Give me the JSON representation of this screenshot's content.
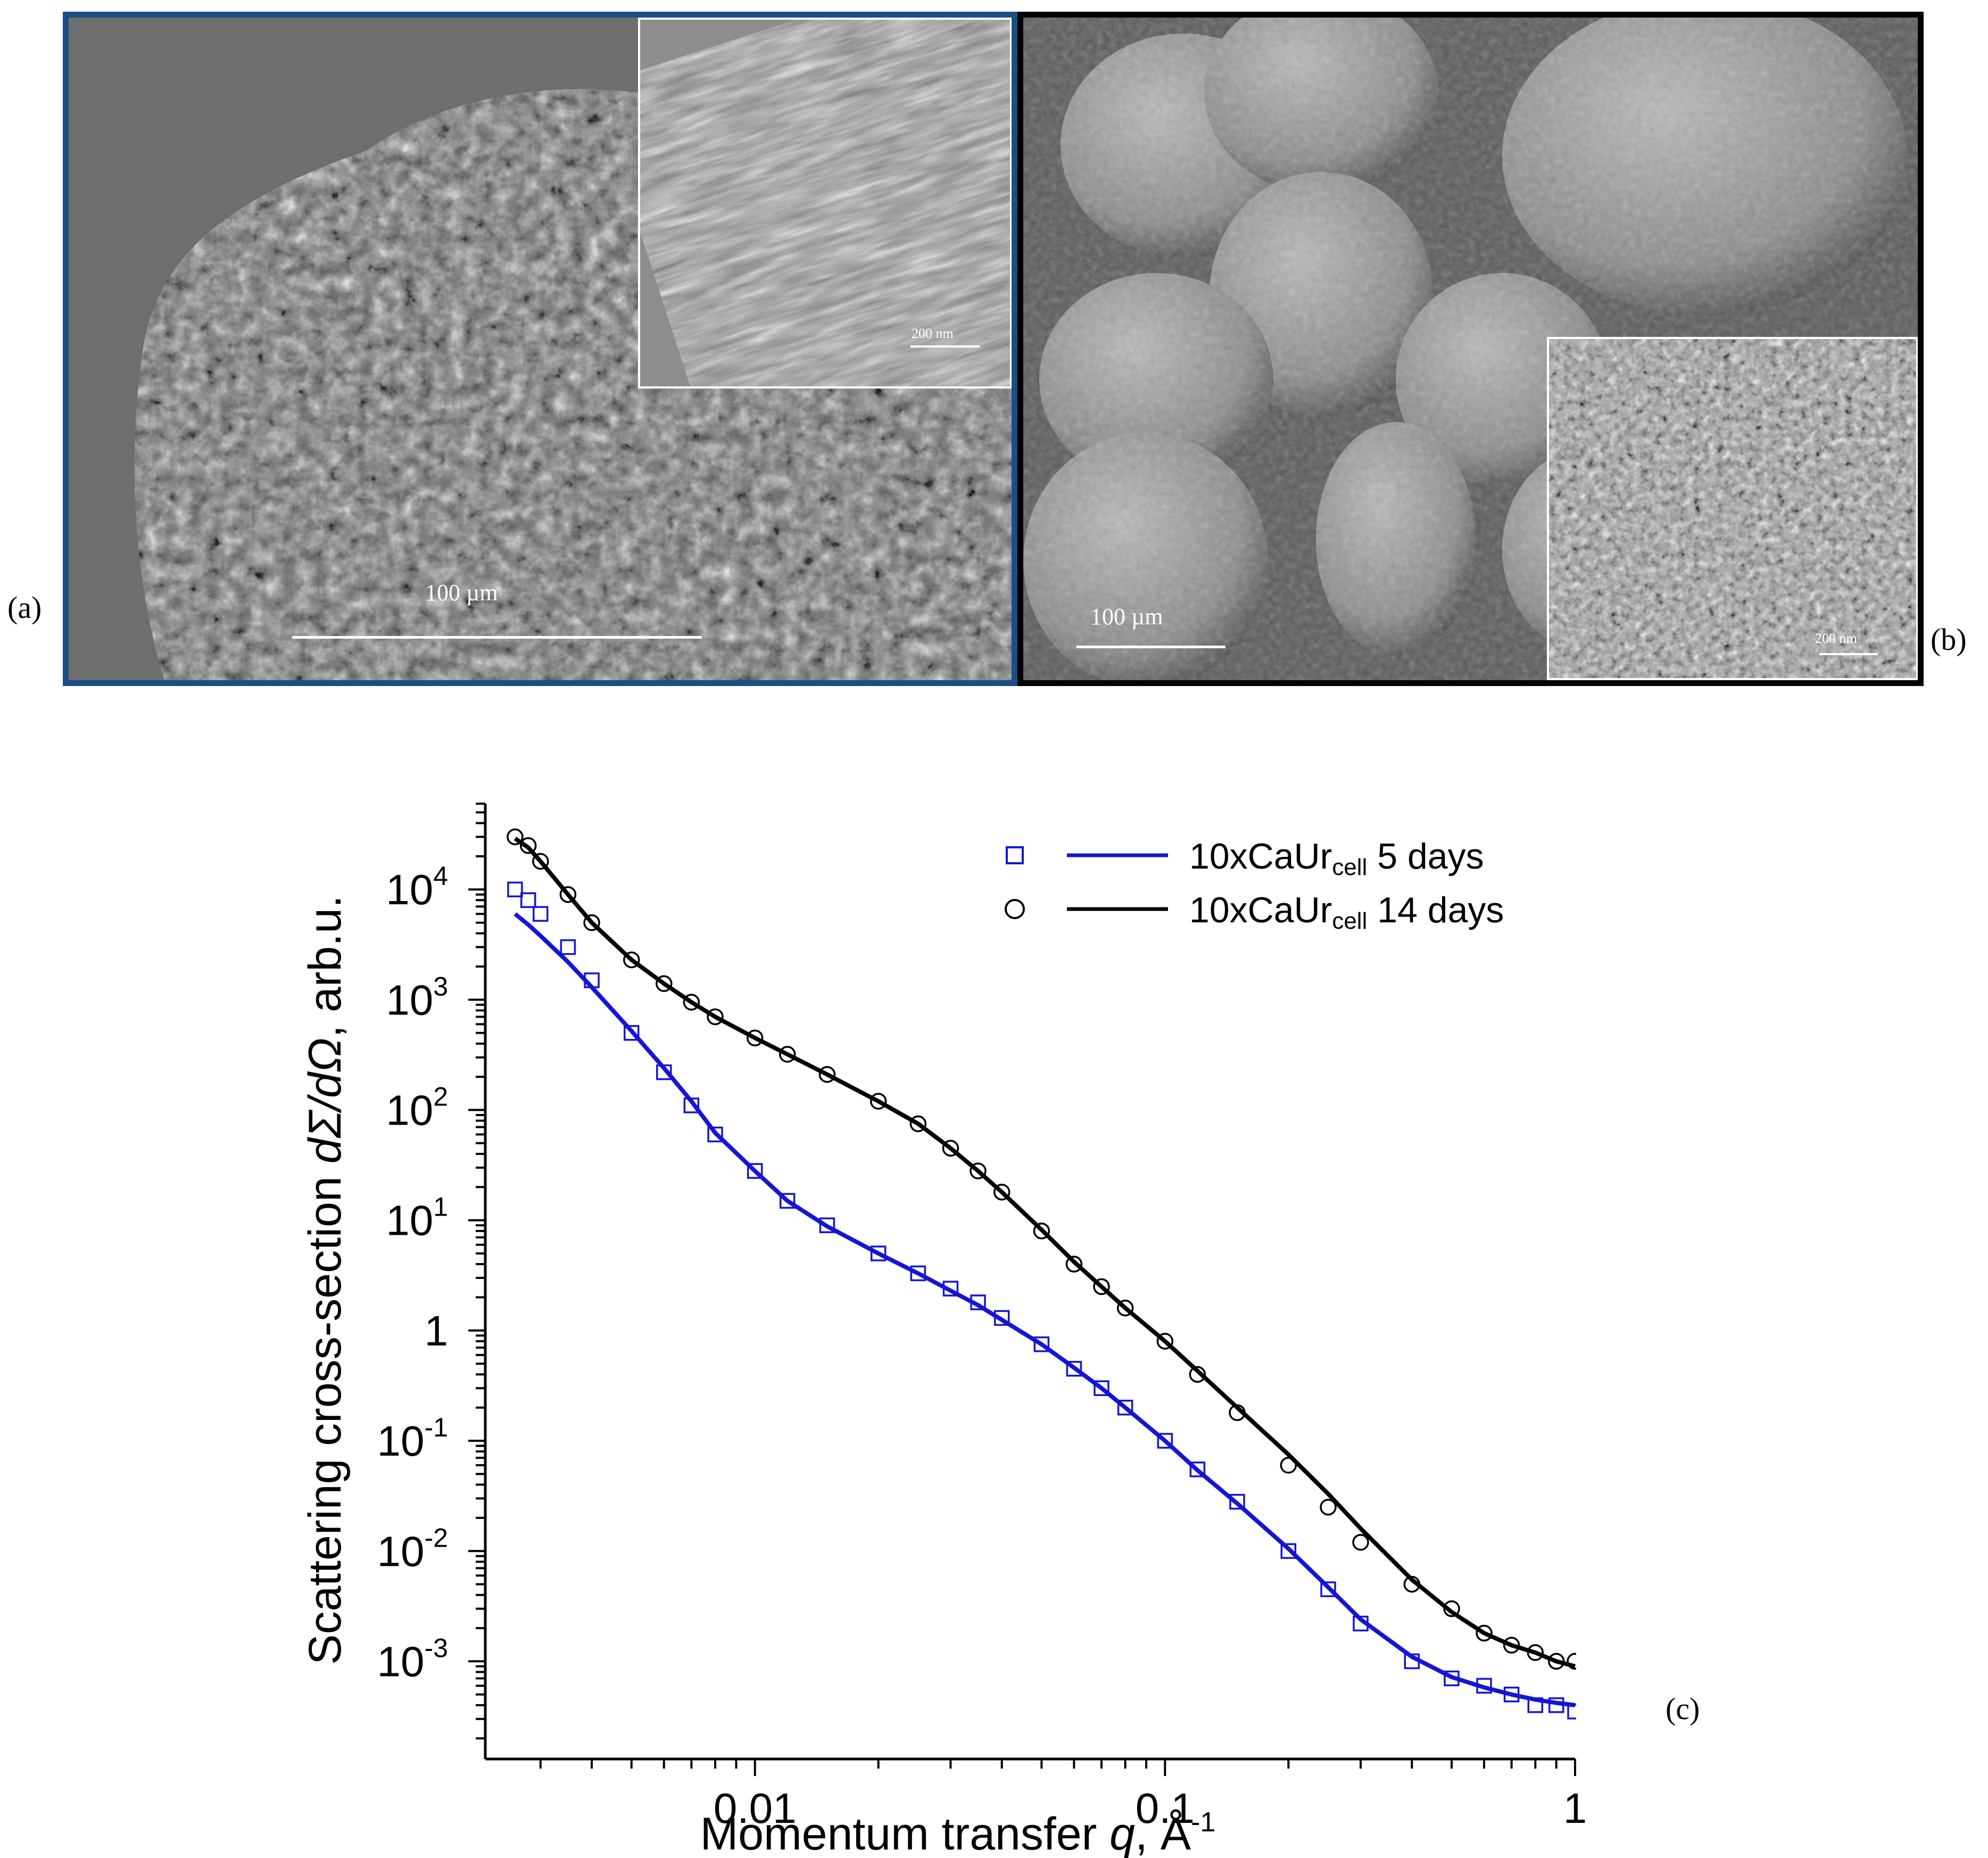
{
  "panels": {
    "a": {
      "letter": "(a)",
      "scale_main": "100 µm",
      "scale_inset": "200 nm"
    },
    "b": {
      "letter": "(b)",
      "scale_main": "100 µm",
      "scale_inset": "200 nm"
    },
    "c": {
      "letter": "(c)"
    }
  },
  "colors": {
    "panel_a_border": "#1c4e85",
    "panel_b_border": "#000000",
    "series_5days": "#1515d6",
    "series_14days": "#000000"
  },
  "chart_data": {
    "type": "scatter",
    "xlabel_text": "Momentum transfer ",
    "xlabel_symbol": "q",
    "xlabel_unit": ", Å",
    "xlabel_unit_exp": "-1",
    "ylabel_text": "Scattering cross-section ",
    "ylabel_symbol": "dΣ/dΩ",
    "ylabel_unit": ", arb.u.",
    "x_scale": "log",
    "y_scale": "log",
    "xlim": [
      0.0022,
      1.0
    ],
    "ylim": [
      0.00013,
      60000
    ],
    "x_ticks": [
      {
        "value": 0.01,
        "label": "0.01"
      },
      {
        "value": 0.1,
        "label": "0.1"
      },
      {
        "value": 1,
        "label": "1"
      }
    ],
    "y_ticks": [
      {
        "value": 10000,
        "base": "10",
        "exp": "4"
      },
      {
        "value": 1000,
        "base": "10",
        "exp": "3"
      },
      {
        "value": 100,
        "base": "10",
        "exp": "2"
      },
      {
        "value": 10,
        "base": "10",
        "exp": "1"
      },
      {
        "value": 1,
        "base": "1",
        "exp": ""
      },
      {
        "value": 0.1,
        "base": "10",
        "exp": "-1"
      },
      {
        "value": 0.01,
        "base": "10",
        "exp": "-2"
      },
      {
        "value": 0.001,
        "base": "10",
        "exp": "-3"
      }
    ],
    "legend_position": "top-right",
    "series": [
      {
        "name": "10xCaUr",
        "name_sub": "cell",
        "name_suffix": " 5 days",
        "marker": "square",
        "x": [
          0.0026,
          0.0028,
          0.003,
          0.0035,
          0.004,
          0.005,
          0.006,
          0.007,
          0.008,
          0.01,
          0.012,
          0.015,
          0.02,
          0.025,
          0.03,
          0.035,
          0.04,
          0.05,
          0.06,
          0.07,
          0.08,
          0.1,
          0.12,
          0.15,
          0.2,
          0.25,
          0.3,
          0.4,
          0.5,
          0.6,
          0.7,
          0.8,
          0.9,
          1.0
        ],
        "y": [
          10000,
          8000,
          6000,
          3000,
          1500,
          500,
          220,
          110,
          60,
          28,
          15,
          9,
          5,
          3.3,
          2.4,
          1.8,
          1.3,
          0.75,
          0.45,
          0.3,
          0.2,
          0.1,
          0.055,
          0.028,
          0.01,
          0.0045,
          0.0022,
          0.001,
          0.0007,
          0.0006,
          0.0005,
          0.0004,
          0.0004,
          0.00035
        ],
        "fit_y": [
          6000,
          4800,
          3800,
          2200,
          1300,
          520,
          240,
          120,
          62,
          28,
          15,
          8.8,
          5,
          3.3,
          2.3,
          1.7,
          1.25,
          0.75,
          0.46,
          0.3,
          0.2,
          0.1,
          0.054,
          0.027,
          0.0105,
          0.0047,
          0.0024,
          0.0011,
          0.00072,
          0.00058,
          0.0005,
          0.00045,
          0.00042,
          0.0004
        ]
      },
      {
        "name": "10xCaUr",
        "name_sub": "cell",
        "name_suffix": " 14 days",
        "marker": "circle",
        "x": [
          0.0026,
          0.0028,
          0.003,
          0.0035,
          0.004,
          0.005,
          0.006,
          0.007,
          0.008,
          0.01,
          0.012,
          0.015,
          0.02,
          0.025,
          0.03,
          0.035,
          0.04,
          0.05,
          0.06,
          0.07,
          0.08,
          0.1,
          0.12,
          0.15,
          0.2,
          0.25,
          0.3,
          0.4,
          0.5,
          0.6,
          0.7,
          0.8,
          0.9,
          1.0
        ],
        "y": [
          30000,
          25000,
          18000,
          9000,
          5000,
          2300,
          1400,
          950,
          700,
          450,
          320,
          210,
          120,
          75,
          45,
          28,
          18,
          8,
          4,
          2.5,
          1.6,
          0.8,
          0.4,
          0.18,
          0.06,
          0.025,
          0.012,
          0.005,
          0.003,
          0.0018,
          0.0014,
          0.0012,
          0.001,
          0.001
        ],
        "fit_y": [
          29000,
          24000,
          18000,
          9000,
          5000,
          2300,
          1400,
          950,
          700,
          450,
          320,
          210,
          120,
          75,
          45,
          28,
          18,
          8.2,
          4.2,
          2.5,
          1.6,
          0.8,
          0.43,
          0.2,
          0.075,
          0.033,
          0.016,
          0.0055,
          0.0028,
          0.0018,
          0.0014,
          0.0012,
          0.001,
          0.0009
        ]
      }
    ]
  }
}
